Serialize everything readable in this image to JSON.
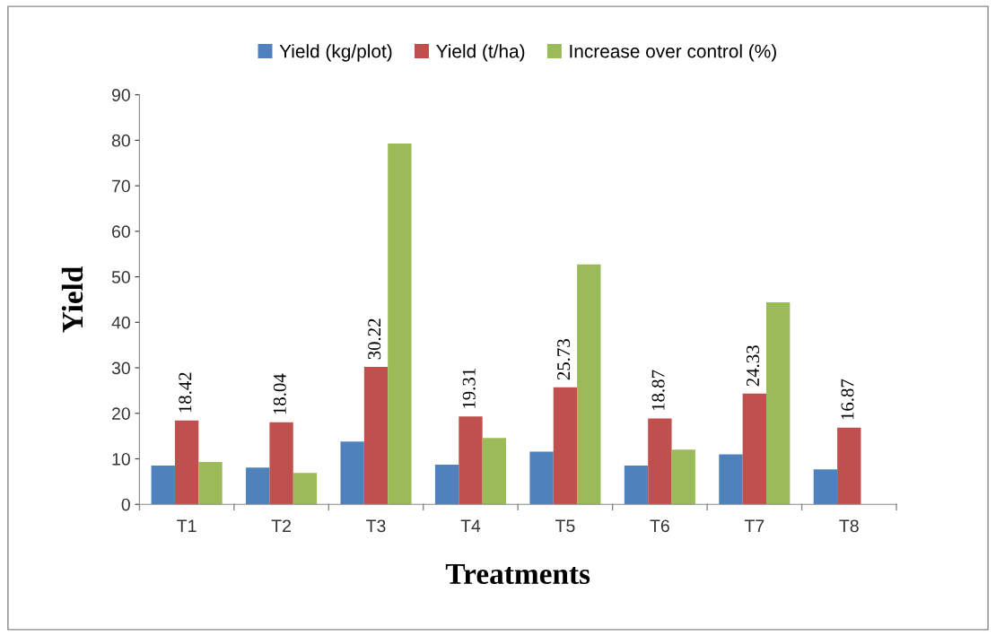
{
  "chart_data": {
    "type": "bar",
    "xlabel": "Treatments",
    "ylabel": "Yield",
    "categories": [
      "T1",
      "T2",
      "T3",
      "T4",
      "T5",
      "T6",
      "T7",
      "T8"
    ],
    "series": [
      {
        "name": "Yield (kg/plot)",
        "color": "#4f81bd",
        "values": [
          8.5,
          8.1,
          13.8,
          8.7,
          11.6,
          8.5,
          11.0,
          7.7
        ]
      },
      {
        "name": "Yield (t/ha)",
        "color": "#c0504d",
        "values": [
          18.42,
          18.04,
          30.22,
          19.31,
          25.73,
          18.87,
          24.33,
          16.87
        ],
        "value_labels": [
          "18.42",
          "18.04",
          "30.22",
          "19.31",
          "25.73",
          "18.87",
          "24.33",
          "16.87"
        ]
      },
      {
        "name": "Increase over control (%)",
        "color": "#9bbb59",
        "values": [
          9.3,
          6.9,
          79.3,
          14.6,
          52.7,
          12.0,
          44.4,
          0
        ]
      }
    ],
    "ylim": [
      0,
      90
    ],
    "yticks": [
      0,
      10,
      20,
      30,
      40,
      50,
      60,
      70,
      80,
      90
    ],
    "grid": false,
    "legend": "top"
  }
}
